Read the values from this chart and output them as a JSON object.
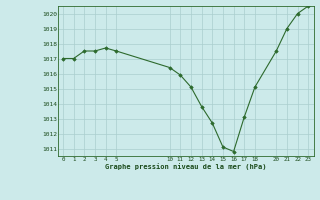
{
  "x": [
    0,
    1,
    2,
    3,
    4,
    5,
    10,
    11,
    12,
    13,
    14,
    15,
    16,
    17,
    18,
    20,
    21,
    22,
    23
  ],
  "y": [
    1017.0,
    1017.0,
    1017.5,
    1017.5,
    1017.7,
    1017.5,
    1016.4,
    1015.9,
    1015.1,
    1013.8,
    1012.7,
    1011.1,
    1010.8,
    1013.1,
    1015.1,
    1017.5,
    1019.0,
    1020.0,
    1020.5
  ],
  "line_color": "#2d6a2d",
  "marker_color": "#2d6a2d",
  "bg_color": "#cceaea",
  "grid_color": "#aacece",
  "ylim": [
    1010.5,
    1020.5
  ],
  "xlim": [
    -0.5,
    23.5
  ],
  "yticks": [
    1011,
    1012,
    1013,
    1014,
    1015,
    1016,
    1017,
    1018,
    1019,
    1020
  ],
  "xticks": [
    0,
    1,
    2,
    3,
    4,
    5,
    10,
    11,
    12,
    13,
    14,
    15,
    16,
    17,
    18,
    20,
    21,
    22,
    23
  ],
  "xlabel": "Graphe pression niveau de la mer (hPa)",
  "xlabel_color": "#1a4a1a",
  "figsize": [
    3.2,
    2.0
  ],
  "dpi": 100
}
